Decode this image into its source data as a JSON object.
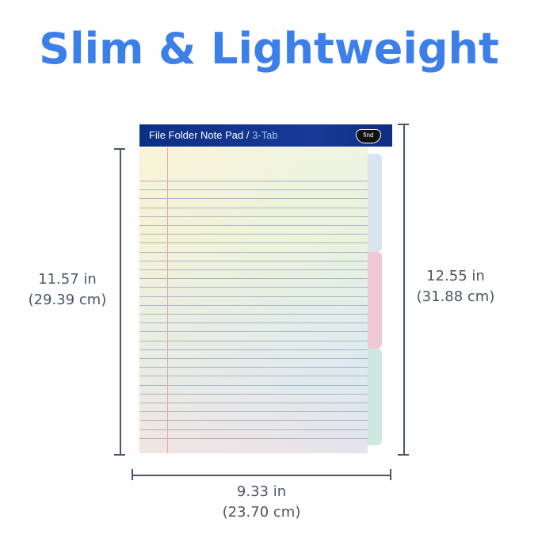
{
  "title": "Slim & Lightweight",
  "product": {
    "header_title": "File Folder Note Pad",
    "header_separator": " / ",
    "header_sub": "3-Tab",
    "logo": "findit"
  },
  "dimensions": {
    "height_paper": {
      "in": "11.57 in",
      "cm": "(29.39 cm)"
    },
    "height_total": {
      "in": "12.55 in",
      "cm": "(31.88 cm)"
    },
    "width": {
      "in": "9.33 in",
      "cm": "(23.70 cm)"
    }
  },
  "colors": {
    "title": "#3d7fe8",
    "header": "#0c2f86",
    "tab1": "#d9e4ee",
    "tab2": "#efc9d6",
    "tab3": "#cde8e0"
  }
}
